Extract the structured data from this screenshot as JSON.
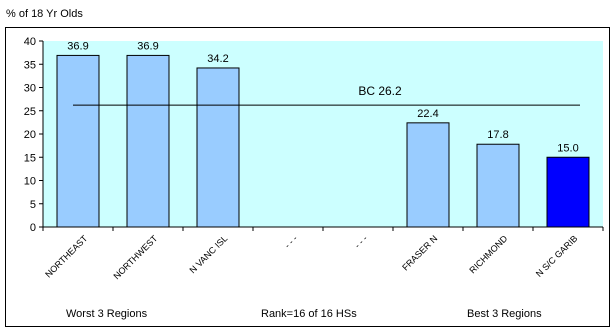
{
  "y_axis_title": "% of 18 Yr Olds",
  "footer": {
    "left": "Worst 3 Regions",
    "center": "Rank=16 of 16 HSs",
    "right": "Best 3 Regions"
  },
  "chart_data": {
    "type": "bar",
    "categories": [
      "NORTHEAST",
      "NORTHWEST",
      "N VANC ISL",
      "- - -",
      "- - -",
      "FRASER N",
      "RICHMOND",
      "N S/C GARIB"
    ],
    "values": [
      36.9,
      36.9,
      34.2,
      null,
      null,
      22.4,
      17.8,
      15.0
    ],
    "value_labels": [
      "36.9",
      "36.9",
      "34.2",
      "",
      "",
      "22.4",
      "17.8",
      "15.0"
    ],
    "highlight_index": 7,
    "ylabel": "% of 18 Yr Olds",
    "ylim": [
      0,
      40
    ],
    "yticks": [
      0,
      5,
      10,
      15,
      20,
      25,
      30,
      35,
      40
    ],
    "reference_line": {
      "label": "BC 26.2",
      "value": 26.2
    },
    "colors": {
      "plot_background": "#ccffff",
      "bar": "#99ccff",
      "bar_highlight": "#0000ff",
      "outline": "#000000"
    },
    "grid": false,
    "legend": "none"
  }
}
